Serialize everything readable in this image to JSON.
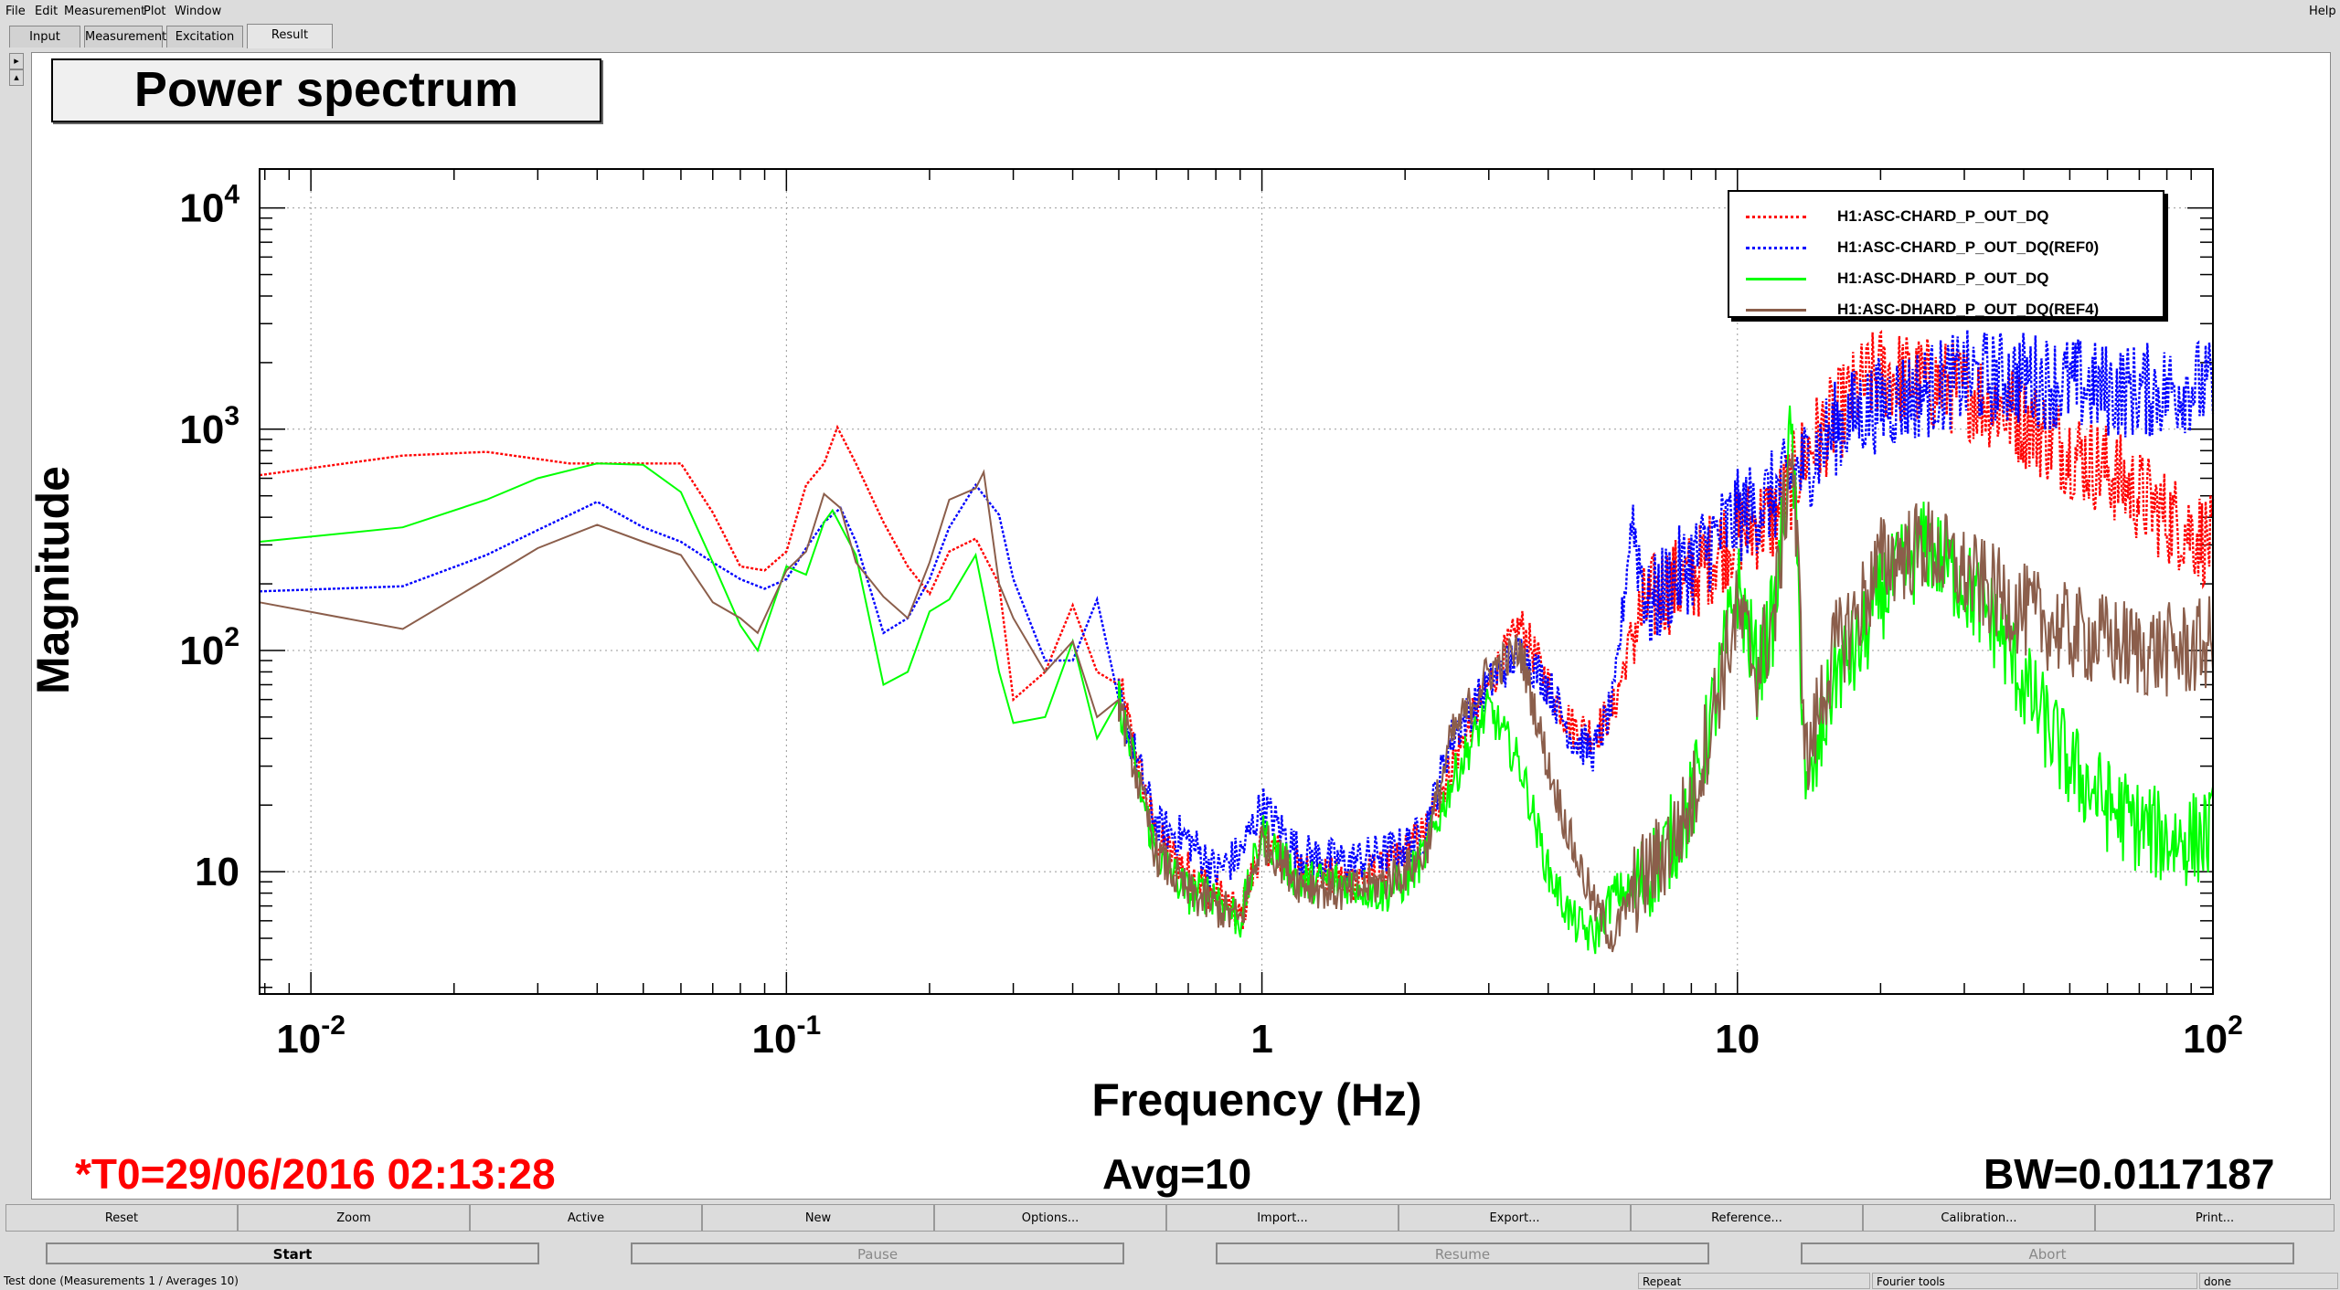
{
  "menubar": {
    "items": [
      "File",
      "Edit",
      "Measurement",
      "Plot",
      "Window"
    ],
    "help": "Help"
  },
  "tabs": [
    {
      "label": "Input",
      "active": false
    },
    {
      "label": "Measurement",
      "active": false
    },
    {
      "label": "Excitation",
      "active": false
    },
    {
      "label": "Result",
      "active": true
    }
  ],
  "plot": {
    "title": "Power spectrum",
    "info": {
      "t0": "*T0=29/06/2016 02:13:28",
      "avg": "Avg=10",
      "bw": "BW=0.0117187"
    }
  },
  "chart_data": {
    "type": "line",
    "title": "Power spectrum",
    "xlabel": "Frequency (Hz)",
    "ylabel": "Magnitude",
    "xscale": "log",
    "yscale": "log",
    "xlim": [
      0.0078,
      100
    ],
    "ylim": [
      2.8,
      15000
    ],
    "x_tick_labels": [
      "10-2",
      "10-1",
      "1",
      "10",
      "102"
    ],
    "y_tick_labels": [
      "10",
      "102",
      "103",
      "104"
    ],
    "grid": true,
    "legend_position": "top-right",
    "series": [
      {
        "name": "H1:ASC-CHARD_P_OUT_DQ",
        "color": "#ff0000",
        "style": "dotted",
        "points": [
          [
            0.0078,
            620
          ],
          [
            0.0156,
            760
          ],
          [
            0.0234,
            790
          ],
          [
            0.035,
            700
          ],
          [
            0.047,
            700
          ],
          [
            0.06,
            700
          ],
          [
            0.07,
            420
          ],
          [
            0.08,
            240
          ],
          [
            0.09,
            230
          ],
          [
            0.1,
            280
          ],
          [
            0.11,
            560
          ],
          [
            0.12,
            700
          ],
          [
            0.128,
            1020
          ],
          [
            0.14,
            700
          ],
          [
            0.16,
            380
          ],
          [
            0.18,
            240
          ],
          [
            0.2,
            180
          ],
          [
            0.22,
            280
          ],
          [
            0.25,
            320
          ],
          [
            0.28,
            200
          ],
          [
            0.3,
            60
          ],
          [
            0.35,
            80
          ],
          [
            0.4,
            160
          ],
          [
            0.45,
            80
          ],
          [
            0.5,
            70
          ],
          [
            0.55,
            30
          ],
          [
            0.6,
            14
          ],
          [
            0.7,
            10
          ],
          [
            0.8,
            8
          ],
          [
            0.9,
            6
          ],
          [
            1.0,
            14
          ],
          [
            1.2,
            10
          ],
          [
            1.5,
            9
          ],
          [
            1.8,
            10
          ],
          [
            2.0,
            12
          ],
          [
            2.2,
            15
          ],
          [
            2.5,
            30
          ],
          [
            3.0,
            70
          ],
          [
            3.5,
            130
          ],
          [
            4.0,
            70
          ],
          [
            4.5,
            45
          ],
          [
            5.0,
            42
          ],
          [
            5.5,
            55
          ],
          [
            6.0,
            120
          ],
          [
            6.5,
            160
          ],
          [
            7.0,
            190
          ],
          [
            8.0,
            210
          ],
          [
            9.0,
            280
          ],
          [
            10,
            350
          ],
          [
            12,
            400
          ],
          [
            14,
            800
          ],
          [
            16,
            1100
          ],
          [
            18,
            1500
          ],
          [
            20,
            1800
          ],
          [
            25,
            1600
          ],
          [
            30,
            1500
          ],
          [
            35,
            1300
          ],
          [
            40,
            1100
          ],
          [
            50,
            800
          ],
          [
            60,
            650
          ],
          [
            70,
            500
          ],
          [
            80,
            400
          ],
          [
            90,
            350
          ],
          [
            100,
            300
          ]
        ]
      },
      {
        "name": "H1:ASC-CHARD_P_OUT_DQ(REF0)",
        "color": "#0000ff",
        "style": "dotted",
        "points": [
          [
            0.0078,
            185
          ],
          [
            0.0156,
            195
          ],
          [
            0.0234,
            270
          ],
          [
            0.03,
            350
          ],
          [
            0.04,
            470
          ],
          [
            0.05,
            360
          ],
          [
            0.06,
            310
          ],
          [
            0.07,
            250
          ],
          [
            0.08,
            210
          ],
          [
            0.09,
            190
          ],
          [
            0.1,
            210
          ],
          [
            0.11,
            290
          ],
          [
            0.12,
            380
          ],
          [
            0.13,
            440
          ],
          [
            0.14,
            310
          ],
          [
            0.16,
            120
          ],
          [
            0.18,
            140
          ],
          [
            0.2,
            210
          ],
          [
            0.22,
            360
          ],
          [
            0.25,
            560
          ],
          [
            0.28,
            410
          ],
          [
            0.3,
            210
          ],
          [
            0.35,
            90
          ],
          [
            0.4,
            90
          ],
          [
            0.45,
            170
          ],
          [
            0.5,
            60
          ],
          [
            0.55,
            30
          ],
          [
            0.6,
            16
          ],
          [
            0.7,
            14
          ],
          [
            0.8,
            10
          ],
          [
            0.9,
            12
          ],
          [
            1.0,
            20
          ],
          [
            1.2,
            12
          ],
          [
            1.5,
            11
          ],
          [
            1.8,
            12
          ],
          [
            2.0,
            13
          ],
          [
            2.2,
            15
          ],
          [
            2.5,
            40
          ],
          [
            3.0,
            70
          ],
          [
            3.5,
            100
          ],
          [
            4.0,
            70
          ],
          [
            4.5,
            40
          ],
          [
            5.0,
            35
          ],
          [
            5.5,
            60
          ],
          [
            6.0,
            400
          ],
          [
            6.5,
            150
          ],
          [
            7.0,
            190
          ],
          [
            8.0,
            250
          ],
          [
            9.0,
            320
          ],
          [
            10,
            400
          ],
          [
            12,
            500
          ],
          [
            14,
            700
          ],
          [
            16,
            1000
          ],
          [
            18,
            1200
          ],
          [
            20,
            1300
          ],
          [
            25,
            1500
          ],
          [
            30,
            1700
          ],
          [
            35,
            1700
          ],
          [
            40,
            1700
          ],
          [
            50,
            1600
          ],
          [
            60,
            1500
          ],
          [
            70,
            1500
          ],
          [
            80,
            1500
          ],
          [
            90,
            1600
          ],
          [
            100,
            1500
          ]
        ]
      },
      {
        "name": "H1:ASC-DHARD_P_OUT_DQ",
        "color": "#00ff00",
        "style": "solid",
        "points": [
          [
            0.0078,
            310
          ],
          [
            0.0156,
            360
          ],
          [
            0.0234,
            480
          ],
          [
            0.03,
            600
          ],
          [
            0.04,
            700
          ],
          [
            0.05,
            690
          ],
          [
            0.06,
            520
          ],
          [
            0.07,
            250
          ],
          [
            0.08,
            130
          ],
          [
            0.087,
            100
          ],
          [
            0.1,
            240
          ],
          [
            0.11,
            220
          ],
          [
            0.12,
            380
          ],
          [
            0.125,
            430
          ],
          [
            0.14,
            270
          ],
          [
            0.16,
            70
          ],
          [
            0.18,
            80
          ],
          [
            0.2,
            150
          ],
          [
            0.22,
            170
          ],
          [
            0.25,
            270
          ],
          [
            0.28,
            80
          ],
          [
            0.3,
            47
          ],
          [
            0.35,
            50
          ],
          [
            0.4,
            110
          ],
          [
            0.45,
            40
          ],
          [
            0.5,
            60
          ],
          [
            0.55,
            25
          ],
          [
            0.6,
            12
          ],
          [
            0.7,
            8
          ],
          [
            0.8,
            8
          ],
          [
            0.9,
            6
          ],
          [
            1.0,
            15
          ],
          [
            1.2,
            9
          ],
          [
            1.5,
            9
          ],
          [
            1.8,
            8
          ],
          [
            2.0,
            9
          ],
          [
            2.2,
            12
          ],
          [
            2.5,
            25
          ],
          [
            3.0,
            55
          ],
          [
            3.5,
            30
          ],
          [
            4.0,
            10
          ],
          [
            4.5,
            6
          ],
          [
            5.0,
            5
          ],
          [
            5.5,
            8
          ],
          [
            6.0,
            8
          ],
          [
            7.0,
            12
          ],
          [
            8.0,
            20
          ],
          [
            9.0,
            60
          ],
          [
            10,
            200
          ],
          [
            11,
            80
          ],
          [
            12,
            150
          ],
          [
            13,
            1000
          ],
          [
            14,
            20
          ],
          [
            15,
            40
          ],
          [
            16,
            80
          ],
          [
            18,
            100
          ],
          [
            20,
            180
          ],
          [
            25,
            300
          ],
          [
            30,
            200
          ],
          [
            35,
            130
          ],
          [
            40,
            70
          ],
          [
            50,
            30
          ],
          [
            60,
            20
          ],
          [
            70,
            16
          ],
          [
            80,
            14
          ],
          [
            90,
            14
          ],
          [
            100,
            15
          ]
        ]
      },
      {
        "name": "H1:ASC-DHARD_P_OUT_DQ(REF4)",
        "color": "#8b5e4b",
        "style": "solid",
        "points": [
          [
            0.0078,
            165
          ],
          [
            0.0156,
            125
          ],
          [
            0.0234,
            210
          ],
          [
            0.03,
            290
          ],
          [
            0.04,
            370
          ],
          [
            0.05,
            310
          ],
          [
            0.06,
            270
          ],
          [
            0.07,
            165
          ],
          [
            0.08,
            140
          ],
          [
            0.087,
            120
          ],
          [
            0.1,
            230
          ],
          [
            0.11,
            280
          ],
          [
            0.12,
            510
          ],
          [
            0.13,
            440
          ],
          [
            0.14,
            250
          ],
          [
            0.16,
            175
          ],
          [
            0.18,
            140
          ],
          [
            0.2,
            250
          ],
          [
            0.22,
            480
          ],
          [
            0.25,
            540
          ],
          [
            0.26,
            640
          ],
          [
            0.28,
            200
          ],
          [
            0.3,
            140
          ],
          [
            0.35,
            80
          ],
          [
            0.4,
            110
          ],
          [
            0.45,
            50
          ],
          [
            0.5,
            60
          ],
          [
            0.55,
            25
          ],
          [
            0.6,
            12
          ],
          [
            0.7,
            8
          ],
          [
            0.8,
            7
          ],
          [
            0.9,
            6
          ],
          [
            1.0,
            14
          ],
          [
            1.2,
            9
          ],
          [
            1.5,
            8
          ],
          [
            1.8,
            9
          ],
          [
            2.0,
            10
          ],
          [
            2.2,
            12
          ],
          [
            2.5,
            40
          ],
          [
            3.0,
            80
          ],
          [
            3.5,
            100
          ],
          [
            4.0,
            30
          ],
          [
            4.5,
            13
          ],
          [
            5.0,
            7
          ],
          [
            5.5,
            5
          ],
          [
            6.0,
            8
          ],
          [
            7.0,
            12
          ],
          [
            8.0,
            20
          ],
          [
            9.0,
            60
          ],
          [
            10,
            150
          ],
          [
            11,
            80
          ],
          [
            12,
            150
          ],
          [
            13,
            900
          ],
          [
            14,
            30
          ],
          [
            15,
            60
          ],
          [
            16,
            100
          ],
          [
            18,
            150
          ],
          [
            20,
            250
          ],
          [
            25,
            300
          ],
          [
            30,
            220
          ],
          [
            35,
            180
          ],
          [
            40,
            150
          ],
          [
            50,
            120
          ],
          [
            60,
            110
          ],
          [
            70,
            100
          ],
          [
            80,
            100
          ],
          [
            90,
            100
          ],
          [
            100,
            110
          ]
        ]
      }
    ]
  },
  "toolbar": [
    "Reset",
    "Zoom",
    "Active",
    "New",
    "Options...",
    "Import...",
    "Export...",
    "Reference...",
    "Calibration...",
    "Print..."
  ],
  "controls": [
    {
      "label": "Start",
      "enabled": true
    },
    {
      "label": "Pause",
      "enabled": false
    },
    {
      "label": "Resume",
      "enabled": false
    },
    {
      "label": "Abort",
      "enabled": false
    }
  ],
  "status": {
    "message": "Test done (Measurements 1 / Averages 10)",
    "repeat": "Repeat",
    "tools": "Fourier tools",
    "state": "done"
  }
}
